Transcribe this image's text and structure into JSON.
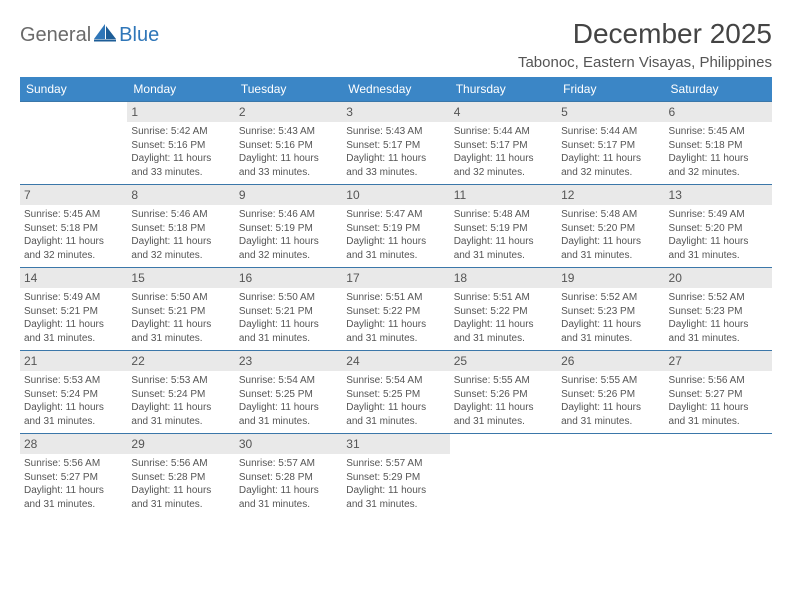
{
  "brand": {
    "word1": "General",
    "word2": "Blue"
  },
  "title": "December 2025",
  "location": "Tabonoc, Eastern Visayas, Philippines",
  "colors": {
    "header_bg": "#3b86c6",
    "week_divider": "#3b77a9",
    "daynum_bg": "#e9e9e9",
    "text": "#555555",
    "logo_blue": "#2f76b8",
    "logo_dark": "#6a6a6a"
  },
  "dow": [
    "Sunday",
    "Monday",
    "Tuesday",
    "Wednesday",
    "Thursday",
    "Friday",
    "Saturday"
  ],
  "weeks": [
    [
      {
        "n": "",
        "sr": "",
        "ss": "",
        "d1": "",
        "d2": ""
      },
      {
        "n": "1",
        "sr": "Sunrise: 5:42 AM",
        "ss": "Sunset: 5:16 PM",
        "d1": "Daylight: 11 hours",
        "d2": "and 33 minutes."
      },
      {
        "n": "2",
        "sr": "Sunrise: 5:43 AM",
        "ss": "Sunset: 5:16 PM",
        "d1": "Daylight: 11 hours",
        "d2": "and 33 minutes."
      },
      {
        "n": "3",
        "sr": "Sunrise: 5:43 AM",
        "ss": "Sunset: 5:17 PM",
        "d1": "Daylight: 11 hours",
        "d2": "and 33 minutes."
      },
      {
        "n": "4",
        "sr": "Sunrise: 5:44 AM",
        "ss": "Sunset: 5:17 PM",
        "d1": "Daylight: 11 hours",
        "d2": "and 32 minutes."
      },
      {
        "n": "5",
        "sr": "Sunrise: 5:44 AM",
        "ss": "Sunset: 5:17 PM",
        "d1": "Daylight: 11 hours",
        "d2": "and 32 minutes."
      },
      {
        "n": "6",
        "sr": "Sunrise: 5:45 AM",
        "ss": "Sunset: 5:18 PM",
        "d1": "Daylight: 11 hours",
        "d2": "and 32 minutes."
      }
    ],
    [
      {
        "n": "7",
        "sr": "Sunrise: 5:45 AM",
        "ss": "Sunset: 5:18 PM",
        "d1": "Daylight: 11 hours",
        "d2": "and 32 minutes."
      },
      {
        "n": "8",
        "sr": "Sunrise: 5:46 AM",
        "ss": "Sunset: 5:18 PM",
        "d1": "Daylight: 11 hours",
        "d2": "and 32 minutes."
      },
      {
        "n": "9",
        "sr": "Sunrise: 5:46 AM",
        "ss": "Sunset: 5:19 PM",
        "d1": "Daylight: 11 hours",
        "d2": "and 32 minutes."
      },
      {
        "n": "10",
        "sr": "Sunrise: 5:47 AM",
        "ss": "Sunset: 5:19 PM",
        "d1": "Daylight: 11 hours",
        "d2": "and 31 minutes."
      },
      {
        "n": "11",
        "sr": "Sunrise: 5:48 AM",
        "ss": "Sunset: 5:19 PM",
        "d1": "Daylight: 11 hours",
        "d2": "and 31 minutes."
      },
      {
        "n": "12",
        "sr": "Sunrise: 5:48 AM",
        "ss": "Sunset: 5:20 PM",
        "d1": "Daylight: 11 hours",
        "d2": "and 31 minutes."
      },
      {
        "n": "13",
        "sr": "Sunrise: 5:49 AM",
        "ss": "Sunset: 5:20 PM",
        "d1": "Daylight: 11 hours",
        "d2": "and 31 minutes."
      }
    ],
    [
      {
        "n": "14",
        "sr": "Sunrise: 5:49 AM",
        "ss": "Sunset: 5:21 PM",
        "d1": "Daylight: 11 hours",
        "d2": "and 31 minutes."
      },
      {
        "n": "15",
        "sr": "Sunrise: 5:50 AM",
        "ss": "Sunset: 5:21 PM",
        "d1": "Daylight: 11 hours",
        "d2": "and 31 minutes."
      },
      {
        "n": "16",
        "sr": "Sunrise: 5:50 AM",
        "ss": "Sunset: 5:21 PM",
        "d1": "Daylight: 11 hours",
        "d2": "and 31 minutes."
      },
      {
        "n": "17",
        "sr": "Sunrise: 5:51 AM",
        "ss": "Sunset: 5:22 PM",
        "d1": "Daylight: 11 hours",
        "d2": "and 31 minutes."
      },
      {
        "n": "18",
        "sr": "Sunrise: 5:51 AM",
        "ss": "Sunset: 5:22 PM",
        "d1": "Daylight: 11 hours",
        "d2": "and 31 minutes."
      },
      {
        "n": "19",
        "sr": "Sunrise: 5:52 AM",
        "ss": "Sunset: 5:23 PM",
        "d1": "Daylight: 11 hours",
        "d2": "and 31 minutes."
      },
      {
        "n": "20",
        "sr": "Sunrise: 5:52 AM",
        "ss": "Sunset: 5:23 PM",
        "d1": "Daylight: 11 hours",
        "d2": "and 31 minutes."
      }
    ],
    [
      {
        "n": "21",
        "sr": "Sunrise: 5:53 AM",
        "ss": "Sunset: 5:24 PM",
        "d1": "Daylight: 11 hours",
        "d2": "and 31 minutes."
      },
      {
        "n": "22",
        "sr": "Sunrise: 5:53 AM",
        "ss": "Sunset: 5:24 PM",
        "d1": "Daylight: 11 hours",
        "d2": "and 31 minutes."
      },
      {
        "n": "23",
        "sr": "Sunrise: 5:54 AM",
        "ss": "Sunset: 5:25 PM",
        "d1": "Daylight: 11 hours",
        "d2": "and 31 minutes."
      },
      {
        "n": "24",
        "sr": "Sunrise: 5:54 AM",
        "ss": "Sunset: 5:25 PM",
        "d1": "Daylight: 11 hours",
        "d2": "and 31 minutes."
      },
      {
        "n": "25",
        "sr": "Sunrise: 5:55 AM",
        "ss": "Sunset: 5:26 PM",
        "d1": "Daylight: 11 hours",
        "d2": "and 31 minutes."
      },
      {
        "n": "26",
        "sr": "Sunrise: 5:55 AM",
        "ss": "Sunset: 5:26 PM",
        "d1": "Daylight: 11 hours",
        "d2": "and 31 minutes."
      },
      {
        "n": "27",
        "sr": "Sunrise: 5:56 AM",
        "ss": "Sunset: 5:27 PM",
        "d1": "Daylight: 11 hours",
        "d2": "and 31 minutes."
      }
    ],
    [
      {
        "n": "28",
        "sr": "Sunrise: 5:56 AM",
        "ss": "Sunset: 5:27 PM",
        "d1": "Daylight: 11 hours",
        "d2": "and 31 minutes."
      },
      {
        "n": "29",
        "sr": "Sunrise: 5:56 AM",
        "ss": "Sunset: 5:28 PM",
        "d1": "Daylight: 11 hours",
        "d2": "and 31 minutes."
      },
      {
        "n": "30",
        "sr": "Sunrise: 5:57 AM",
        "ss": "Sunset: 5:28 PM",
        "d1": "Daylight: 11 hours",
        "d2": "and 31 minutes."
      },
      {
        "n": "31",
        "sr": "Sunrise: 5:57 AM",
        "ss": "Sunset: 5:29 PM",
        "d1": "Daylight: 11 hours",
        "d2": "and 31 minutes."
      },
      {
        "n": "",
        "sr": "",
        "ss": "",
        "d1": "",
        "d2": ""
      },
      {
        "n": "",
        "sr": "",
        "ss": "",
        "d1": "",
        "d2": ""
      },
      {
        "n": "",
        "sr": "",
        "ss": "",
        "d1": "",
        "d2": ""
      }
    ]
  ]
}
